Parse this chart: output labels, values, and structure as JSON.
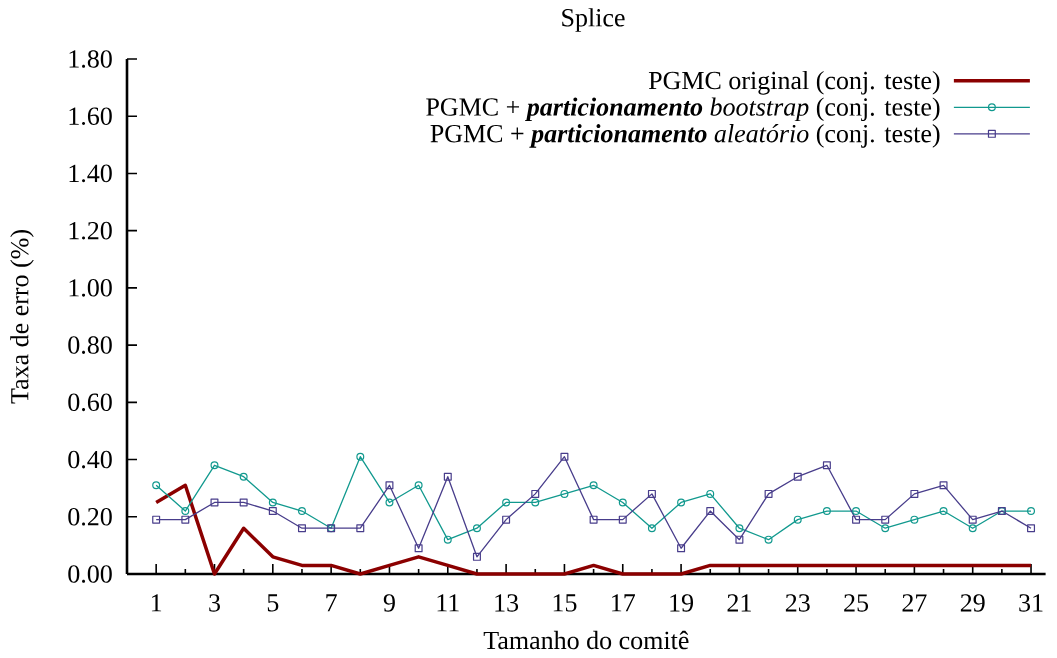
{
  "chart_data": {
    "type": "line",
    "title": "Splice",
    "xlabel": "Tamanho do comitê",
    "ylabel": "Taxa de erro (%)",
    "x": [
      1,
      2,
      3,
      4,
      5,
      6,
      7,
      8,
      9,
      10,
      11,
      12,
      13,
      14,
      15,
      16,
      17,
      18,
      19,
      20,
      21,
      22,
      23,
      24,
      25,
      26,
      27,
      28,
      29,
      30,
      31
    ],
    "series": [
      {
        "name": "PGMC original (conj. teste)",
        "color": "#8b0000",
        "marker": "none",
        "values": [
          0.25,
          0.31,
          0,
          0.16,
          0.06,
          0.03,
          0.03,
          0,
          0.03,
          0.06,
          0.03,
          0,
          0,
          0,
          0,
          0.03,
          0,
          0,
          0,
          0.03,
          0.03,
          0.03,
          0.03,
          0.03,
          0.03,
          0.03,
          0.03,
          0.03,
          0.03,
          0.03,
          0.03
        ]
      },
      {
        "name": "PGMC + **particionamento** *bootstrap* (conj. teste)",
        "color": "#11998e",
        "marker": "circle",
        "values": [
          0.31,
          0.22,
          0.38,
          0.34,
          0.25,
          0.22,
          0.16,
          0.41,
          0.25,
          0.31,
          0.12,
          0.16,
          0.25,
          0.25,
          0.28,
          0.31,
          0.25,
          0.16,
          0.25,
          0.28,
          0.16,
          0.12,
          0.19,
          0.22,
          0.22,
          0.16,
          0.19,
          0.22,
          0.16,
          0.22,
          0.22
        ]
      },
      {
        "name": "PGMC + **particionamento** *aleatório* (conj. teste)",
        "color": "#483d8b",
        "marker": "square",
        "values": [
          0.19,
          0.19,
          0.25,
          0.25,
          0.22,
          0.16,
          0.16,
          0.16,
          0.31,
          0.09,
          0.34,
          0.06,
          0.19,
          0.28,
          0.41,
          0.19,
          0.19,
          0.28,
          0.09,
          0.22,
          0.12,
          0.28,
          0.34,
          0.38,
          0.19,
          0.19,
          0.28,
          0.31,
          0.19,
          0.22,
          0.16
        ]
      }
    ],
    "xlim": [
      0,
      31.5
    ],
    "xticks": [
      1,
      {
        "value": 2,
        "label": null
      },
      3,
      {
        "value": 4,
        "label": null
      },
      5,
      {
        "value": 6,
        "label": null
      },
      7,
      {
        "value": 8,
        "label": null
      },
      9,
      {
        "value": 10,
        "label": null
      },
      11,
      {
        "value": 12,
        "label": null
      },
      13,
      {
        "value": 14,
        "label": null
      },
      15,
      {
        "value": 16,
        "label": null
      },
      17,
      {
        "value": 18,
        "label": null
      },
      19,
      {
        "value": 20,
        "label": null
      },
      21,
      {
        "value": 22,
        "label": null
      },
      23,
      {
        "value": 24,
        "label": null
      },
      25,
      {
        "value": 26,
        "label": null
      },
      27,
      {
        "value": 28,
        "label": null
      },
      29,
      {
        "value": 30,
        "label": null
      },
      31
    ],
    "ylim": [
      0,
      1.8
    ],
    "yticks": [
      {
        "value": 0,
        "label": "0.00"
      },
      {
        "value": 0.2,
        "label": "0.20"
      },
      {
        "value": 0.4,
        "label": "0.40"
      },
      {
        "value": 0.6,
        "label": "0.60"
      },
      {
        "value": 0.8,
        "label": "0.80"
      },
      {
        "value": 1.0,
        "label": "1.00"
      },
      {
        "value": 1.2,
        "label": "1.20"
      },
      {
        "value": 1.4,
        "label": "1.40"
      },
      {
        "value": 1.6,
        "label": "1.60"
      },
      {
        "value": 1.8,
        "label": "1.80"
      }
    ],
    "legend": "top right"
  }
}
